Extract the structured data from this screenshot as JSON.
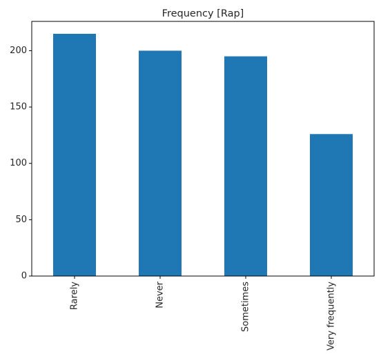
{
  "chart_data": {
    "type": "bar",
    "title": "Frequency [Rap]",
    "xlabel": "",
    "ylabel": "",
    "categories": [
      "Rarely",
      "Never",
      "Sometimes",
      "Very frequently"
    ],
    "values": [
      215,
      200,
      195,
      126
    ],
    "ylim": [
      0,
      226
    ],
    "yticks": [
      0,
      50,
      100,
      150,
      200
    ],
    "ytick_labels": [
      "0",
      "50",
      "100",
      "150",
      "200"
    ],
    "grid": false,
    "legend": "none",
    "bar_color": "#1f77b4",
    "axis_color": "#000000"
  }
}
